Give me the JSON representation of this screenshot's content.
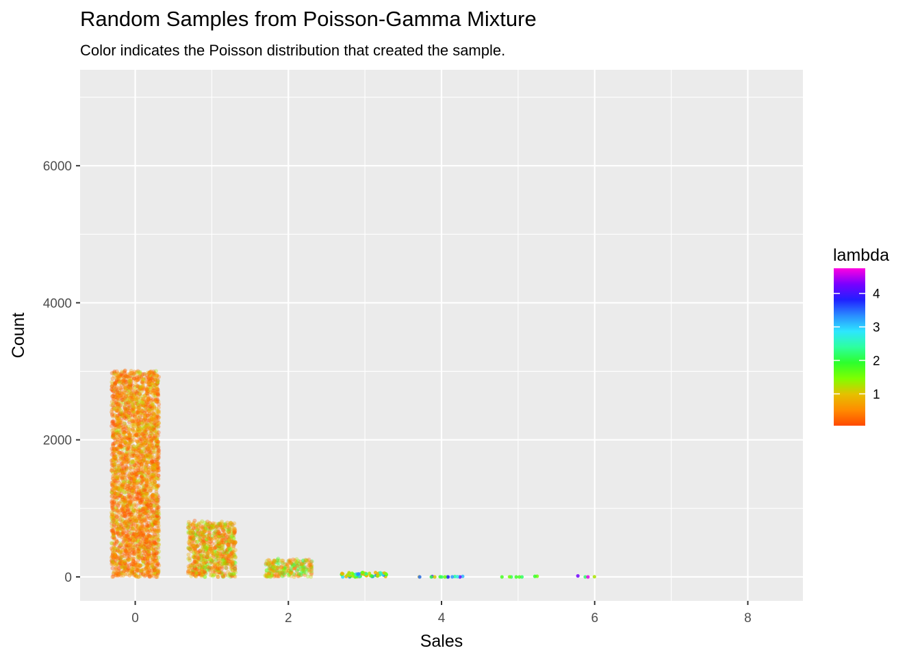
{
  "chart_data": {
    "type": "scatter",
    "title": "Random Samples from Poisson-Gamma Mixture",
    "subtitle": "Color indicates the Poisson distribution that created the sample.",
    "xlabel": "Sales",
    "ylabel": "Count",
    "xlim": [
      -0.72,
      8.72
    ],
    "ylim": [
      -350,
      7400
    ],
    "x_ticks": [
      0,
      2,
      4,
      6,
      8
    ],
    "y_ticks": [
      0,
      2000,
      4000,
      6000
    ],
    "grid": true,
    "legend": {
      "title": "lambda",
      "placement": "right",
      "range": [
        0.05,
        4.75
      ],
      "ticks": [
        1,
        2,
        3,
        4
      ],
      "colors": [
        "#ff4a00",
        "#ff8c00",
        "#e5c000",
        "#7fff00",
        "#2dff2d",
        "#2dffa0",
        "#2de6ff",
        "#2a8cff",
        "#2020ff",
        "#7a00ff",
        "#ff00e0"
      ]
    },
    "columns": [
      {
        "sales": 0,
        "count": 3000,
        "lambda_range": [
          0.05,
          1.3
        ]
      },
      {
        "sales": 1,
        "count": 800,
        "lambda_range": [
          0.1,
          1.8
        ]
      },
      {
        "sales": 2,
        "count": 250,
        "lambda_range": [
          0.3,
          2.2
        ]
      },
      {
        "sales": 3,
        "count": 60,
        "lambda_range": [
          0.8,
          3.5
        ]
      },
      {
        "sales": 4,
        "count": 15,
        "lambda_range": [
          0.9,
          4.2
        ]
      },
      {
        "sales": 5,
        "count": 8,
        "lambda_range": [
          1.5,
          2.5
        ]
      },
      {
        "sales": 6,
        "count": 4,
        "lambda_range": [
          1.2,
          4.7
        ]
      }
    ]
  }
}
